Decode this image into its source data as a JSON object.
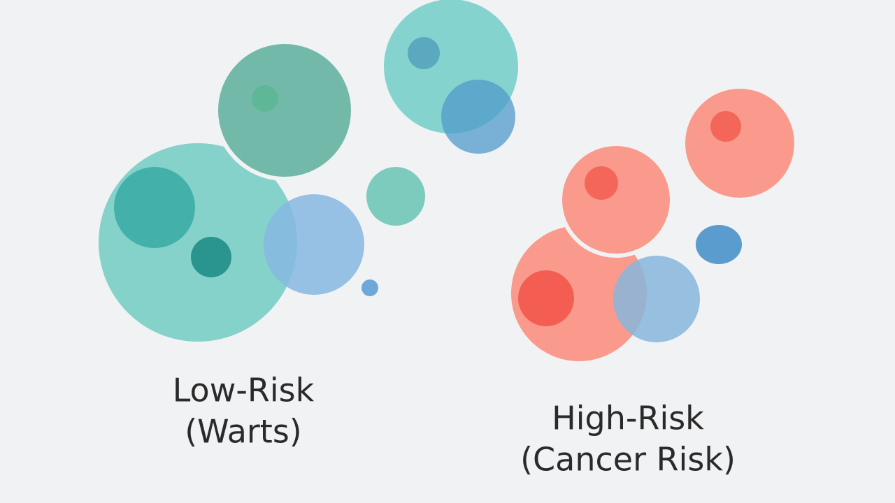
{
  "labels": [
    {
      "lines": [
        "Low-Risk",
        "(Warts)"
      ]
    },
    {
      "lines": [
        "High-Risk",
        "(Cancer Risk)"
      ]
    }
  ]
}
